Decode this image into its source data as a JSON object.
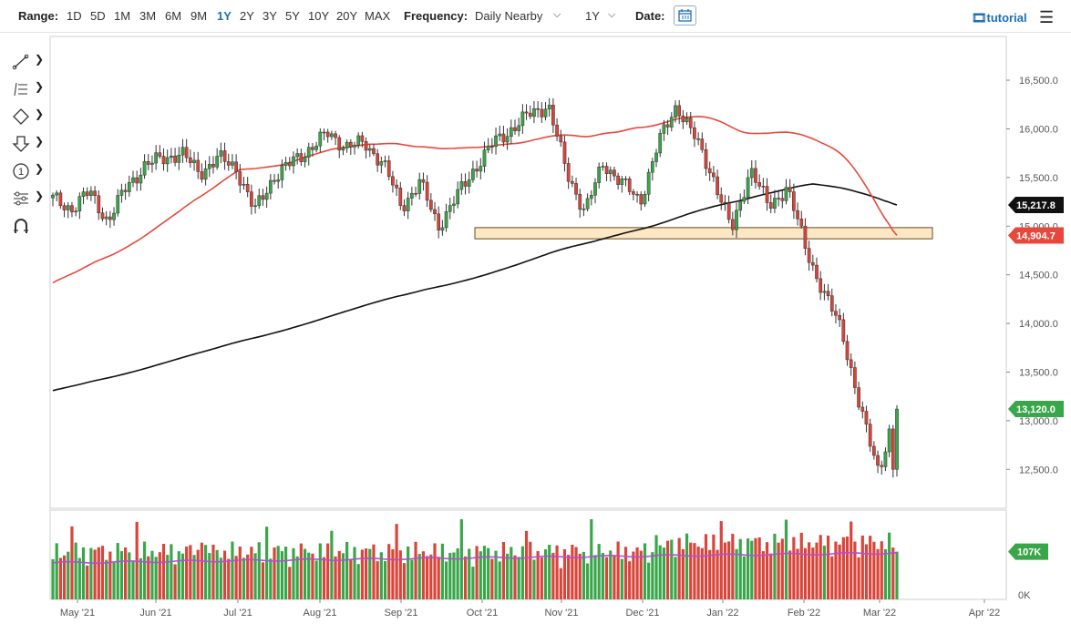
{
  "toolbar": {
    "range_label": "Range:",
    "ranges": [
      "1D",
      "5D",
      "1M",
      "3M",
      "6M",
      "9M",
      "1Y",
      "2Y",
      "3Y",
      "5Y",
      "10Y",
      "20Y",
      "MAX"
    ],
    "active_range": "1Y",
    "frequency_label": "Frequency:",
    "frequency_value": "Daily Nearby",
    "period_value": "1Y",
    "date_label": "Date:",
    "tutorial_label": "tutorial"
  },
  "sidebar_tools": [
    "line-tool-icon",
    "fib-tool-icon",
    "shape-tool-icon",
    "arrow-tool-icon",
    "number-tool-icon",
    "settings-tool-icon",
    "magnet-icon"
  ],
  "colors": {
    "up": "#3aa64a",
    "down": "#d9453a",
    "ma50": "#e8483c",
    "ma200": "#111111",
    "volume_ma": "#b34fd4",
    "zone_fill": "#fde7c5",
    "zone_stroke": "#6b4a1c"
  },
  "chart_data": {
    "type": "candlestick",
    "x_ticks": [
      "May '21",
      "Jun '21",
      "Jul '21",
      "Aug '21",
      "Sep '21",
      "Oct '21",
      "Nov '21",
      "Dec '21",
      "Jan '22",
      "Feb '22",
      "Mar '22",
      "Apr '22"
    ],
    "y_ticks": [
      "16,500.0",
      "16,000.0",
      "15,500.0",
      "15,000.0",
      "14,500.0",
      "14,000.0",
      "13,500.0",
      "13,000.0",
      "12,500.0"
    ],
    "ylim": [
      12100,
      16950
    ],
    "price_labels": {
      "ma200": {
        "text": "15,217.8",
        "value": 15217.8
      },
      "ma50": {
        "text": "14,904.7",
        "value": 14904.7
      },
      "last": {
        "text": "13,120.0",
        "value": 13120.0
      }
    },
    "support_zone": {
      "low": 14870,
      "high": 14985,
      "from": "Oct '21",
      "to": "Mar '22"
    },
    "volume": {
      "last_label": "107K",
      "zero_label": "0K",
      "max_k": 200
    },
    "close_path": [
      [
        "Apr '21",
        15280
      ],
      [
        "Apr '21",
        15180
      ],
      [
        "May '21",
        15350
      ],
      [
        "May '21",
        15050
      ],
      [
        "May '21",
        15400
      ],
      [
        "Jun '21",
        15620
      ],
      [
        "Jun '21",
        15700
      ],
      [
        "Jun '21",
        15750
      ],
      [
        "Jun '21",
        15550
      ],
      [
        "Jul '21",
        15700
      ],
      [
        "Jul '21",
        15600
      ],
      [
        "Jul '21",
        15150
      ],
      [
        "Jul '21",
        15500
      ],
      [
        "Aug '21",
        15650
      ],
      [
        "Aug '21",
        15800
      ],
      [
        "Aug '21",
        15950
      ],
      [
        "Aug '21",
        15820
      ],
      [
        "Sep '21",
        15850
      ],
      [
        "Sep '21",
        15650
      ],
      [
        "Sep '21",
        15200
      ],
      [
        "Sep '21",
        15450
      ],
      [
        "Oct '21",
        15000
      ],
      [
        "Oct '21",
        15300
      ],
      [
        "Oct '21",
        15600
      ],
      [
        "Oct '21",
        15850
      ],
      [
        "Nov '21",
        16000
      ],
      [
        "Nov '21",
        16150
      ],
      [
        "Nov '21",
        16250
      ],
      [
        "Nov '21",
        15550
      ],
      [
        "Dec '21",
        15150
      ],
      [
        "Dec '21",
        15650
      ],
      [
        "Dec '21",
        15450
      ],
      [
        "Dec '21",
        15250
      ],
      [
        "Dec '21",
        15850
      ],
      [
        "Jan '22",
        16250
      ],
      [
        "Jan '22",
        15900
      ],
      [
        "Jan '22",
        15500
      ],
      [
        "Jan '22",
        14950
      ],
      [
        "Feb '22",
        15600
      ],
      [
        "Feb '22",
        15200
      ],
      [
        "Feb '22",
        15400
      ],
      [
        "Feb '22",
        14800
      ],
      [
        "Mar '22",
        14300
      ],
      [
        "Mar '22",
        13950
      ],
      [
        "Mar '22",
        13100
      ],
      [
        "Mar '22",
        12500
      ],
      [
        "Mar '22",
        13120
      ]
    ]
  }
}
